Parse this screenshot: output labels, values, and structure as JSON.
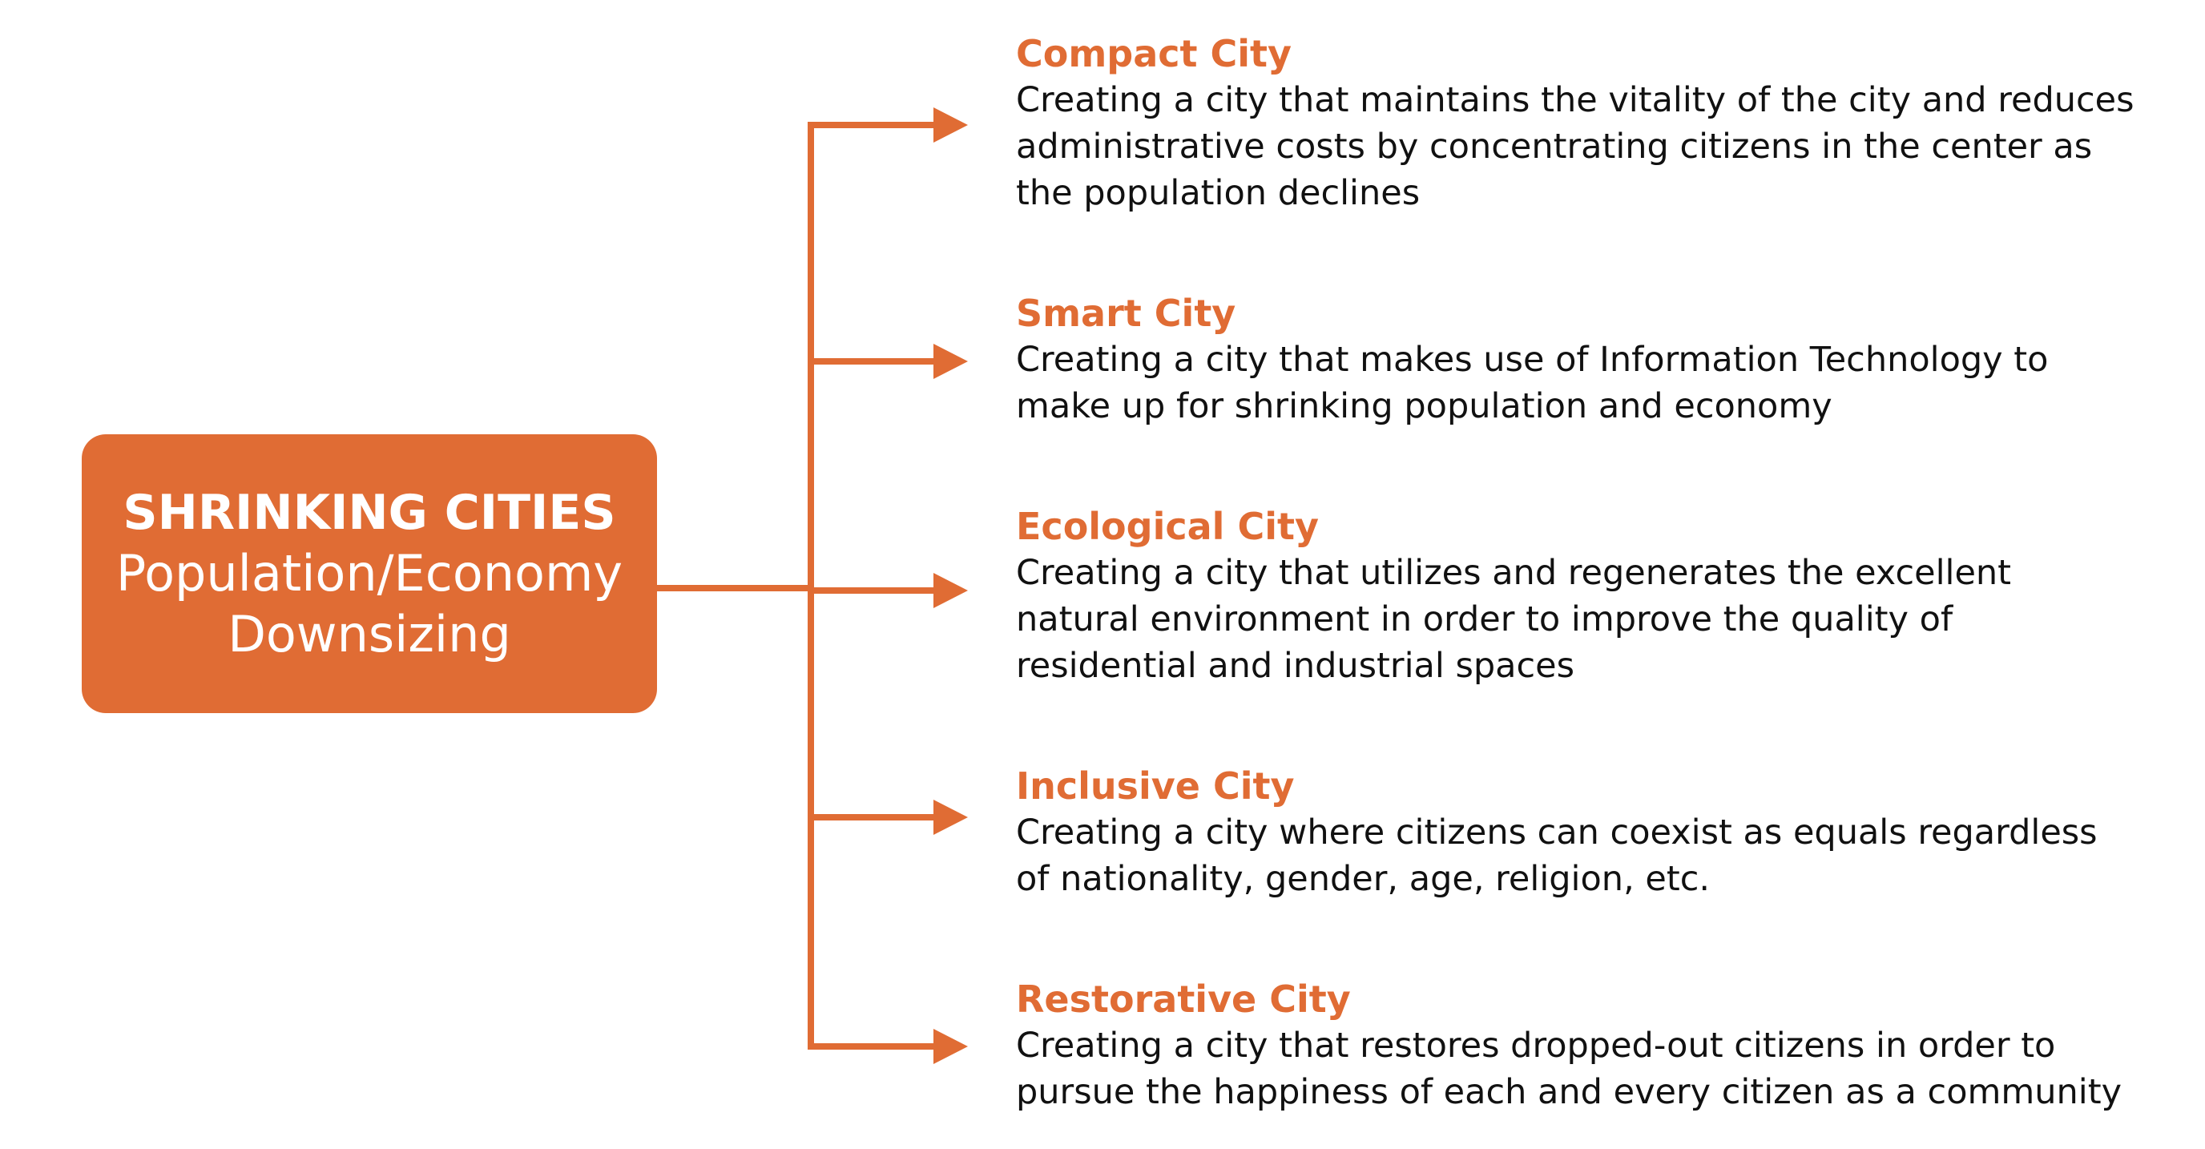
{
  "colors": {
    "accent": "#E06C34",
    "text": "#111111",
    "background": "#FFFFFF",
    "center_text": "#FFFFFF"
  },
  "center": {
    "title": "SHRINKING CITIES",
    "subtitle_line1": "Population/Economy",
    "subtitle_line2": "Downsizing"
  },
  "branches": [
    {
      "title": "Compact City",
      "lines": [
        "Creating a city that maintains the vitality of the city and reduces",
        "administrative costs by concentrating citizens in the center as",
        "the population declines"
      ]
    },
    {
      "title": "Smart City",
      "lines": [
        "Creating a city that makes use of Information Technology to",
        "make up for shrinking population and economy"
      ]
    },
    {
      "title": "Ecological City",
      "lines": [
        "Creating a city that utilizes and regenerates the excellent",
        "natural environment in order to improve the quality of",
        "residential and industrial spaces"
      ]
    },
    {
      "title": "Inclusive City",
      "lines": [
        "Creating a city where citizens can coexist as equals regardless",
        "of nationality, gender, age, religion, etc."
      ]
    },
    {
      "title": "Restorative City",
      "lines": [
        "Creating a city that restores dropped-out citizens in order to",
        "pursue the happiness of each and every citizen as a community"
      ]
    }
  ]
}
